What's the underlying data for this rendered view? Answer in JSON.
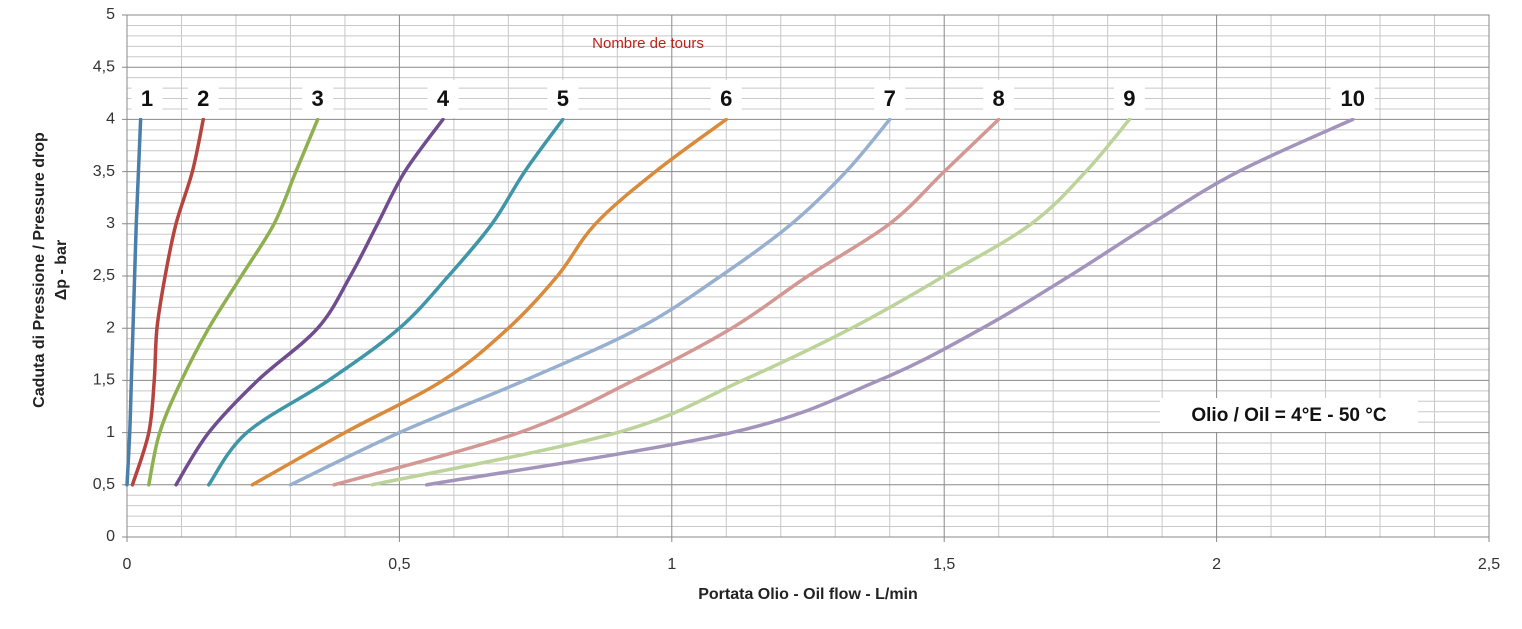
{
  "chart_data": {
    "type": "line",
    "title": "Nombre de tours",
    "title_color": "#c0201a",
    "xlabel": "Portata Olio - Oil flow -  L/min",
    "ylabel": [
      "Caduta di Pressione / Pressure drop",
      "Δp - bar"
    ],
    "annotations": [
      "Olio / Oil = 4°E - 50 °C"
    ],
    "xlim": [
      0,
      2.5
    ],
    "ylim": [
      0,
      5
    ],
    "xticks": [
      0,
      {
        "value": 0.5,
        "label": "0,5"
      },
      1,
      {
        "value": 1.5,
        "label": "1,5"
      },
      2,
      {
        "value": 2.5,
        "label": "2,5"
      }
    ],
    "yticks": [
      0,
      {
        "value": 0.5,
        "label": "0,5"
      },
      1,
      {
        "value": 1.5,
        "label": "1,5"
      },
      2,
      {
        "value": 2.5,
        "label": "2,5"
      },
      3,
      {
        "value": 3.5,
        "label": "3,5"
      },
      4,
      {
        "value": 4.5,
        "label": "4,5"
      },
      5
    ],
    "grid": true,
    "series": [
      {
        "name": "1",
        "color": "#4a7eab",
        "x": [
          0.0,
          0.005,
          0.008,
          0.011,
          0.014,
          0.017,
          0.021,
          0.025
        ],
        "values": [
          0.5,
          1,
          1.5,
          2,
          2.5,
          3,
          3.5,
          4
        ]
      },
      {
        "name": "2",
        "color": "#b5443f",
        "x": [
          0.01,
          0.04,
          0.05,
          0.055,
          0.07,
          0.09,
          0.12,
          0.14
        ],
        "values": [
          0.5,
          1,
          1.5,
          2,
          2.5,
          3,
          3.5,
          4
        ]
      },
      {
        "name": "3",
        "color": "#8fb04f",
        "x": [
          0.04,
          0.06,
          0.1,
          0.15,
          0.21,
          0.27,
          0.31,
          0.35
        ],
        "values": [
          0.5,
          1,
          1.5,
          2,
          2.5,
          3,
          3.5,
          4
        ]
      },
      {
        "name": "4",
        "color": "#6f4d8f",
        "x": [
          0.09,
          0.15,
          0.24,
          0.35,
          0.41,
          0.46,
          0.51,
          0.58
        ],
        "values": [
          0.5,
          1,
          1.5,
          2,
          2.5,
          3,
          3.5,
          4
        ]
      },
      {
        "name": "5",
        "color": "#3f96a8",
        "x": [
          0.15,
          0.22,
          0.37,
          0.5,
          0.59,
          0.67,
          0.73,
          0.8
        ],
        "values": [
          0.5,
          1,
          1.5,
          2,
          2.5,
          3,
          3.5,
          4
        ]
      },
      {
        "name": "6",
        "color": "#d98a3a",
        "x": [
          0.23,
          0.4,
          0.58,
          0.7,
          0.79,
          0.86,
          0.97,
          1.1
        ],
        "values": [
          0.5,
          1,
          1.5,
          2,
          2.5,
          3,
          3.5,
          4
        ]
      },
      {
        "name": "7",
        "color": "#98b0d0",
        "x": [
          0.3,
          0.5,
          0.73,
          0.94,
          1.09,
          1.22,
          1.32,
          1.4
        ],
        "values": [
          0.5,
          1,
          1.5,
          2,
          2.5,
          3,
          3.5,
          4
        ]
      },
      {
        "name": "8",
        "color": "#d39894",
        "x": [
          0.38,
          0.72,
          0.93,
          1.11,
          1.25,
          1.4,
          1.5,
          1.6
        ],
        "values": [
          0.5,
          1,
          1.5,
          2,
          2.5,
          3,
          3.5,
          4
        ]
      },
      {
        "name": "9",
        "color": "#bcd39a",
        "x": [
          0.45,
          0.9,
          1.13,
          1.33,
          1.5,
          1.66,
          1.76,
          1.84
        ],
        "values": [
          0.5,
          1,
          1.5,
          2,
          2.5,
          3,
          3.5,
          4
        ]
      },
      {
        "name": "10",
        "color": "#a394bc",
        "x": [
          0.55,
          1.11,
          1.38,
          1.57,
          1.73,
          1.88,
          2.04,
          2.25
        ],
        "values": [
          0.5,
          1,
          1.5,
          2,
          2.5,
          3,
          3.5,
          4
        ]
      }
    ]
  }
}
